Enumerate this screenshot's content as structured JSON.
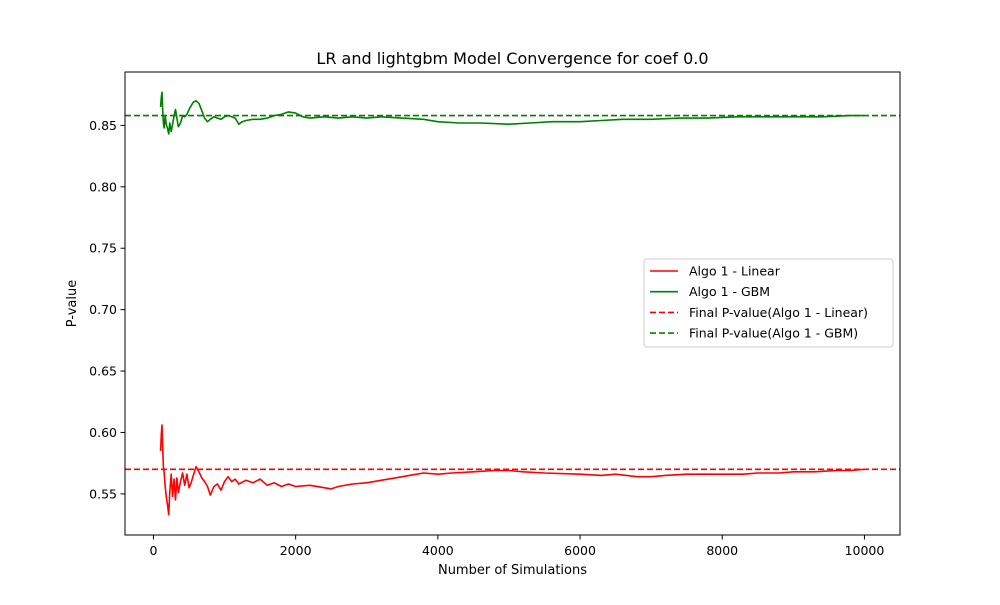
{
  "chart_data": {
    "type": "line",
    "title": "LR and lightgbm Model Convergence for coef 0.0",
    "xlabel": "Number of Simulations",
    "ylabel": "P-value",
    "xlim": [
      -400,
      10500
    ],
    "ylim": [
      0.5165,
      0.8935
    ],
    "x_ticks": [
      0,
      2000,
      4000,
      6000,
      8000,
      10000
    ],
    "y_ticks": [
      0.55,
      0.6,
      0.65,
      0.7,
      0.75,
      0.8,
      0.85
    ],
    "y_tick_labels": [
      "0.55",
      "0.60",
      "0.65",
      "0.70",
      "0.75",
      "0.80",
      "0.85"
    ],
    "grid": false,
    "legend_position": "center-right",
    "series": [
      {
        "name": "Algo 1 - Linear",
        "color": "#ff0000",
        "style": "solid",
        "x": [
          100,
          110,
          120,
          130,
          140,
          150,
          165,
          180,
          200,
          215,
          230,
          250,
          270,
          290,
          310,
          330,
          350,
          380,
          410,
          440,
          470,
          500,
          530,
          560,
          600,
          640,
          680,
          720,
          760,
          800,
          850,
          900,
          950,
          1000,
          1050,
          1100,
          1150,
          1200,
          1300,
          1400,
          1500,
          1600,
          1700,
          1800,
          1900,
          2000,
          2200,
          2400,
          2500,
          2600,
          2800,
          3000,
          3200,
          3400,
          3600,
          3800,
          4000,
          4200,
          4500,
          4800,
          5000,
          5200,
          5500,
          6000,
          6300,
          6500,
          6800,
          7000,
          7200,
          7500,
          8000,
          8300,
          8500,
          8800,
          9000,
          9300,
          9600,
          9800,
          10000
        ],
        "y": [
          0.585,
          0.598,
          0.606,
          0.588,
          0.572,
          0.568,
          0.556,
          0.548,
          0.54,
          0.533,
          0.552,
          0.566,
          0.548,
          0.562,
          0.545,
          0.563,
          0.551,
          0.56,
          0.567,
          0.557,
          0.566,
          0.555,
          0.559,
          0.565,
          0.572,
          0.568,
          0.563,
          0.56,
          0.556,
          0.549,
          0.556,
          0.558,
          0.553,
          0.56,
          0.564,
          0.56,
          0.562,
          0.558,
          0.561,
          0.559,
          0.562,
          0.557,
          0.559,
          0.556,
          0.558,
          0.556,
          0.557,
          0.555,
          0.554,
          0.556,
          0.558,
          0.559,
          0.561,
          0.563,
          0.565,
          0.567,
          0.566,
          0.567,
          0.568,
          0.569,
          0.569,
          0.568,
          0.567,
          0.566,
          0.565,
          0.566,
          0.564,
          0.564,
          0.565,
          0.566,
          0.566,
          0.566,
          0.567,
          0.567,
          0.568,
          0.568,
          0.569,
          0.569,
          0.57
        ]
      },
      {
        "name": "Algo 1 - GBM",
        "color": "#008000",
        "style": "solid",
        "x": [
          100,
          110,
          120,
          130,
          140,
          150,
          165,
          180,
          200,
          215,
          230,
          250,
          270,
          290,
          310,
          330,
          350,
          380,
          410,
          440,
          470,
          500,
          530,
          560,
          600,
          640,
          680,
          720,
          760,
          800,
          850,
          900,
          950,
          1000,
          1050,
          1100,
          1150,
          1200,
          1250,
          1300,
          1400,
          1500,
          1600,
          1700,
          1800,
          1900,
          2000,
          2100,
          2200,
          2400,
          2600,
          2800,
          3000,
          3200,
          3500,
          3800,
          4000,
          4300,
          4600,
          5000,
          5300,
          5600,
          6000,
          6300,
          6600,
          7000,
          7400,
          7800,
          8200,
          8600,
          9000,
          9400,
          9800,
          10000
        ],
        "y": [
          0.865,
          0.873,
          0.877,
          0.862,
          0.852,
          0.848,
          0.858,
          0.851,
          0.847,
          0.843,
          0.852,
          0.845,
          0.851,
          0.858,
          0.863,
          0.856,
          0.849,
          0.852,
          0.858,
          0.857,
          0.859,
          0.863,
          0.866,
          0.869,
          0.87,
          0.868,
          0.862,
          0.856,
          0.853,
          0.855,
          0.857,
          0.856,
          0.855,
          0.857,
          0.858,
          0.857,
          0.856,
          0.851,
          0.853,
          0.854,
          0.855,
          0.855,
          0.856,
          0.858,
          0.859,
          0.861,
          0.86,
          0.857,
          0.856,
          0.857,
          0.856,
          0.857,
          0.856,
          0.857,
          0.856,
          0.855,
          0.853,
          0.852,
          0.852,
          0.851,
          0.852,
          0.853,
          0.853,
          0.854,
          0.855,
          0.855,
          0.856,
          0.856,
          0.857,
          0.857,
          0.857,
          0.857,
          0.858,
          0.858
        ]
      },
      {
        "name": "Final P-value(Algo 1 - Linear)",
        "color": "#ff0000",
        "style": "dashed",
        "hline": 0.57
      },
      {
        "name": "Final P-value(Algo 1 - GBM)",
        "color": "#008000",
        "style": "dashed",
        "hline": 0.858
      }
    ]
  }
}
